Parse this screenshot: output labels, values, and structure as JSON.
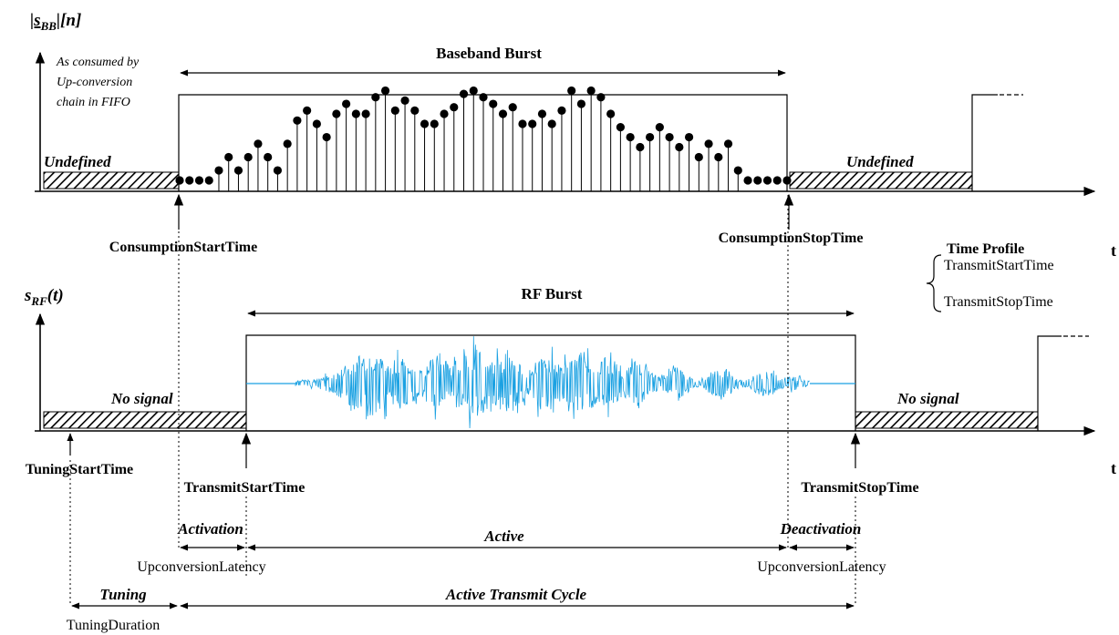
{
  "top_plot": {
    "y_symbol_main": "|s",
    "y_symbol_sub": "BB",
    "y_symbol_tail": "|[n]",
    "axis_note": [
      "As consumed by",
      "Up-conversion",
      "chain in FIFO"
    ],
    "burst_label": "Baseband Burst",
    "undefined_left": "Undefined",
    "undefined_right": "Undefined",
    "t_label": "t",
    "consumption_start": "ConsumptionStartTime",
    "consumption_stop": "ConsumptionStopTime",
    "sample_levels": [
      0,
      0,
      0,
      0,
      0.15,
      0.35,
      0.15,
      0.35,
      0.55,
      0.35,
      0.15,
      0.55,
      0.9,
      1.05,
      0.85,
      0.65,
      1.0,
      1.15,
      1.0,
      1.0,
      1.25,
      1.35,
      1.05,
      1.2,
      1.05,
      0.85,
      0.85,
      1.0,
      1.1,
      1.3,
      1.35,
      1.25,
      1.15,
      1.0,
      1.1,
      0.85,
      0.85,
      1.0,
      0.85,
      1.05,
      1.35,
      1.15,
      1.35,
      1.25,
      1.0,
      0.8,
      0.65,
      0.5,
      0.65,
      0.8,
      0.65,
      0.5,
      0.65,
      0.35,
      0.55,
      0.35,
      0.55,
      0.15,
      0,
      0,
      0,
      0,
      0
    ]
  },
  "time_profile": {
    "title": "Time Profile",
    "items": [
      "TransmitStartTime",
      "TransmitStopTime"
    ]
  },
  "bottom_plot": {
    "y_symbol_main": "s",
    "y_symbol_sub": "RF",
    "y_symbol_tail": "(t)",
    "burst_label": "RF Burst",
    "no_signal_left": "No signal",
    "no_signal_right": "No signal",
    "t_label": "t",
    "tuning_start": "TuningStartTime",
    "transmit_start": "TransmitStartTime",
    "transmit_stop": "TransmitStopTime",
    "waveform_color": "#1ba1e2"
  },
  "timeline": {
    "activation": "Activation",
    "active": "Active",
    "deactivation": "Deactivation",
    "upconversion_latency_left": "UpconversionLatency",
    "upconversion_latency_right": "UpconversionLatency",
    "tuning": "Tuning",
    "active_transmit_cycle": "Active Transmit Cycle",
    "tuning_duration": "TuningDuration"
  }
}
